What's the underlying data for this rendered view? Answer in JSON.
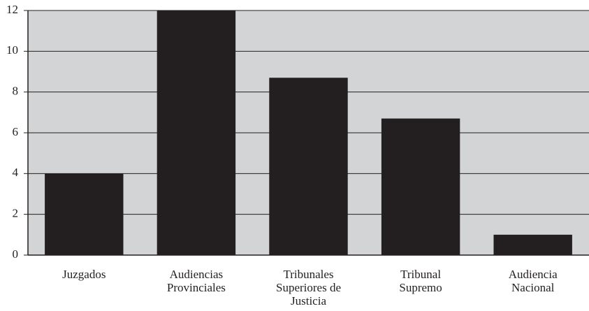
{
  "chart_data": {
    "type": "bar",
    "categories": [
      "Juzgados",
      "Audiencias Provinciales",
      "Tribunales Superiores de Justicia",
      "Tribunal Supremo",
      "Audiencia Nacional"
    ],
    "values": [
      4.0,
      12.0,
      8.7,
      6.7,
      1.0
    ],
    "color": "#231f20",
    "ylim": [
      0,
      12
    ],
    "yticks": [
      0,
      2,
      4,
      6,
      8,
      10,
      12
    ],
    "grid": true
  }
}
